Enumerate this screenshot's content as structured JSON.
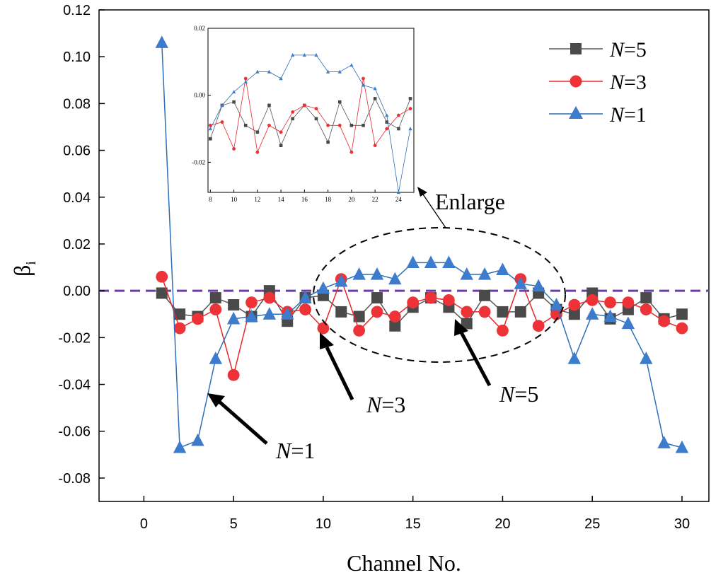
{
  "chart_data": {
    "type": "line",
    "title": "",
    "xlabel": "Channel No.",
    "ylabel": "β",
    "ylabel_subscript": "i",
    "xlim": [
      -2.5,
      31.5
    ],
    "ylim": [
      -0.09,
      0.12
    ],
    "xticks": [
      0,
      5,
      10,
      15,
      20,
      25,
      30
    ],
    "xtick_labels": [
      "0",
      "5",
      "10",
      "15",
      "20",
      "25",
      "30"
    ],
    "yticks": [
      0.12,
      0.1,
      0.08,
      0.06,
      0.04,
      0.02,
      0.0,
      -0.02,
      -0.04,
      -0.06,
      -0.08
    ],
    "ytick_labels": [
      "0.12",
      "0.10",
      "0.08",
      "0.06",
      "0.04",
      "0.02",
      "0.00",
      "-0.02",
      "-0.04",
      "-0.06",
      "-0.08"
    ],
    "reference_line": {
      "y": 0.0,
      "style": "dashed",
      "color": "#6a3fa0"
    },
    "x": [
      1,
      2,
      3,
      4,
      5,
      6,
      7,
      8,
      9,
      10,
      11,
      12,
      13,
      14,
      15,
      16,
      17,
      18,
      19,
      20,
      21,
      22,
      23,
      24,
      25,
      26,
      27,
      28,
      29,
      30
    ],
    "series": [
      {
        "name": "N=5",
        "name_italic": "N",
        "name_rest": "=5",
        "marker": "square",
        "color": "#555555",
        "marker_color": "#4a4a4a",
        "values": [
          -0.001,
          -0.01,
          -0.011,
          -0.003,
          -0.006,
          -0.011,
          0.0,
          -0.013,
          -0.003,
          -0.002,
          -0.009,
          -0.011,
          -0.003,
          -0.015,
          -0.007,
          -0.003,
          -0.007,
          -0.014,
          -0.002,
          -0.009,
          -0.009,
          -0.001,
          -0.008,
          -0.01,
          -0.001,
          -0.012,
          -0.008,
          -0.003,
          -0.012,
          -0.01
        ]
      },
      {
        "name": "N=3",
        "name_italic": "N",
        "name_rest": "=3",
        "marker": "circle",
        "color": "#e8262b",
        "marker_color": "#ee3338",
        "values": [
          0.006,
          -0.016,
          -0.012,
          -0.008,
          -0.036,
          -0.005,
          -0.003,
          -0.009,
          -0.008,
          -0.016,
          0.005,
          -0.017,
          -0.009,
          -0.011,
          -0.005,
          -0.003,
          -0.004,
          -0.009,
          -0.009,
          -0.017,
          0.005,
          -0.015,
          -0.01,
          -0.006,
          -0.004,
          -0.005,
          -0.005,
          -0.008,
          -0.013,
          -0.016
        ]
      },
      {
        "name": "N=1",
        "name_italic": "N",
        "name_rest": "=1",
        "marker": "triangle",
        "color": "#2c6fb8",
        "marker_color": "#3d7ccc",
        "values": [
          0.106,
          -0.067,
          -0.064,
          -0.029,
          -0.012,
          -0.011,
          -0.01,
          -0.01,
          -0.003,
          0.001,
          0.004,
          0.007,
          0.007,
          0.005,
          0.012,
          0.012,
          0.012,
          0.007,
          0.007,
          0.009,
          0.003,
          0.002,
          -0.006,
          -0.029,
          -0.01,
          -0.011,
          -0.014,
          -0.029,
          -0.065,
          -0.067
        ]
      }
    ],
    "legend_position": "top-right",
    "annotations": [
      {
        "text_italic": "N",
        "text_rest": "=1"
      },
      {
        "text_italic": "N",
        "text_rest": "=3"
      },
      {
        "text_italic": "N",
        "text_rest": "=5"
      },
      {
        "text_italic": "",
        "text_rest": "Enlarge"
      }
    ],
    "inset": {
      "xrange": [
        8,
        25
      ],
      "xlim": [
        7.8,
        25.3
      ],
      "ylim": [
        -0.029,
        0.02
      ],
      "xticks": [
        8,
        10,
        12,
        14,
        16,
        18,
        20,
        22,
        24
      ],
      "xtick_labels": [
        "8",
        "10",
        "12",
        "14",
        "16",
        "18",
        "20",
        "22",
        "24"
      ],
      "yticks": [
        0.02,
        0.0,
        -0.02
      ],
      "ytick_labels": [
        "0.02",
        "0.00",
        "-0.02"
      ]
    }
  }
}
